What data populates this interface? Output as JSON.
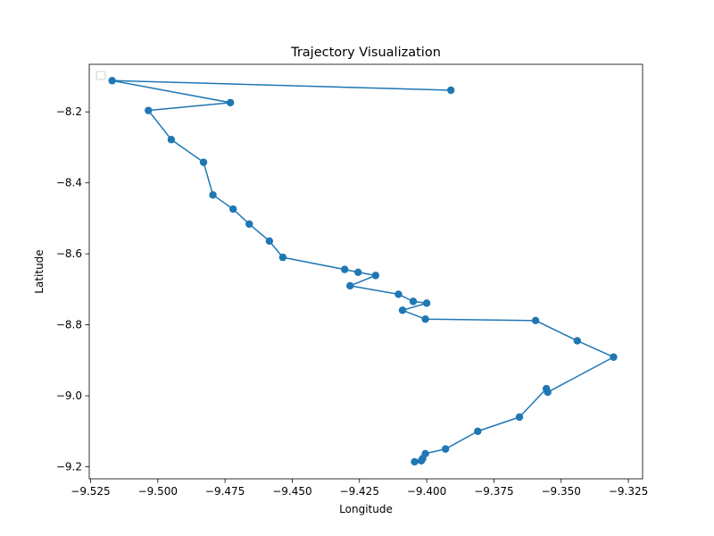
{
  "chart_data": {
    "type": "line",
    "title": "Trajectory Visualization",
    "xlabel": "Longitude",
    "ylabel": "Latitude",
    "xlim": [
      -9.5255,
      -9.3197
    ],
    "ylim": [
      -9.234,
      -8.066
    ],
    "xticks": [
      -9.525,
      -9.5,
      -9.475,
      -9.45,
      -9.425,
      -9.4,
      -9.375,
      -9.35,
      -9.325
    ],
    "xtick_labels": [
      "−9.525",
      "−9.500",
      "−9.475",
      "−9.450",
      "−9.425",
      "−9.400",
      "−9.375",
      "−9.350",
      "−9.325"
    ],
    "yticks": [
      -8.2,
      -8.4,
      -8.6,
      -8.8,
      -9.0,
      -9.2
    ],
    "ytick_labels": [
      "−8.2",
      "−8.4",
      "−8.6",
      "−8.8",
      "−9.0",
      "−9.2"
    ],
    "grid": false,
    "legend": "upper-left, empty",
    "series": [
      {
        "color": "#1f77b4",
        "marker": "circle",
        "points": [
          [
            -9.391,
            -8.139
          ],
          [
            -9.517,
            -8.112
          ],
          [
            -9.473,
            -8.174
          ],
          [
            -9.5035,
            -8.196
          ],
          [
            -9.495,
            -8.278
          ],
          [
            -9.483,
            -8.342
          ],
          [
            -9.4795,
            -8.434
          ],
          [
            -9.472,
            -8.474
          ],
          [
            -9.466,
            -8.516
          ],
          [
            -9.4585,
            -8.564
          ],
          [
            -9.4535,
            -8.61
          ],
          [
            -9.4305,
            -8.644
          ],
          [
            -9.4255,
            -8.652
          ],
          [
            -9.419,
            -8.661
          ],
          [
            -9.4285,
            -8.69
          ],
          [
            -9.4105,
            -8.714
          ],
          [
            -9.405,
            -8.734
          ],
          [
            -9.4,
            -8.739
          ],
          [
            -9.409,
            -8.759
          ],
          [
            -9.4005,
            -8.784
          ],
          [
            -9.3595,
            -8.788
          ],
          [
            -9.344,
            -8.845
          ],
          [
            -9.3305,
            -8.891
          ],
          [
            -9.355,
            -8.99
          ],
          [
            -9.3555,
            -8.98
          ],
          [
            -9.3655,
            -9.06
          ],
          [
            -9.381,
            -9.1
          ],
          [
            -9.393,
            -9.15
          ],
          [
            -9.4005,
            -9.163
          ],
          [
            -9.402,
            -9.183
          ],
          [
            -9.4015,
            -9.177
          ],
          [
            -9.4045,
            -9.186
          ]
        ]
      }
    ]
  }
}
